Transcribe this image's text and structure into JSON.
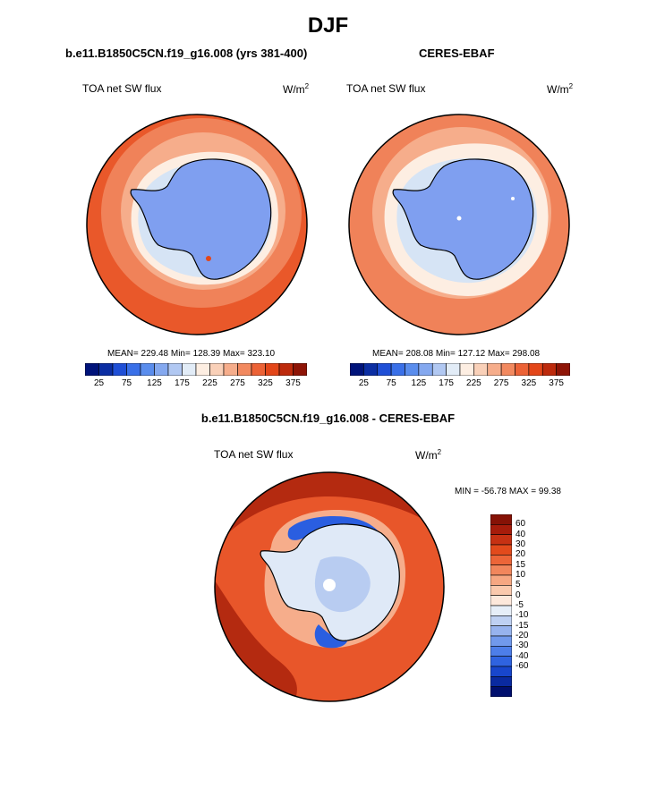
{
  "figure": {
    "title": "DJF"
  },
  "panel_left": {
    "title": "b.e11.B1850C5CN.f19_g16.008 (yrs 381-400)",
    "variable": "TOA net SW flux",
    "units_base": "W/m",
    "units_exp": "2",
    "stats": "MEAN= 229.48  Min= 128.39  Max= 323.10"
  },
  "panel_right": {
    "title": "CERES-EBAF",
    "variable": "TOA net SW flux",
    "units_base": "W/m",
    "units_exp": "2",
    "stats": "MEAN= 208.08  Min= 127.12  Max= 298.08"
  },
  "panel_diff": {
    "title": "b.e11.B1850C5CN.f19_g16.008 - CERES-EBAF",
    "variable": "TOA net SW flux",
    "units_base": "W/m",
    "units_exp": "2",
    "minmax": "MIN = -56.78 MAX =  99.38"
  },
  "colorbar_abs": {
    "colors": [
      "#00137a",
      "#0b2ea3",
      "#1f4fd6",
      "#3a70e8",
      "#5a8ded",
      "#84a8ef",
      "#b1c8f2",
      "#e2ecf7",
      "#fdeee2",
      "#f9d0b8",
      "#f6ad8b",
      "#f2895f",
      "#ec6236",
      "#e34619",
      "#bd2a0c",
      "#8e1406"
    ],
    "tick_labels": [
      "25",
      "75",
      "125",
      "175",
      "225",
      "275",
      "325",
      "375"
    ]
  },
  "colorbar_diff": {
    "colors": [
      "#000f6e",
      "#0a2aa0",
      "#1846cc",
      "#2f63e0",
      "#4d7ee9",
      "#7199ec",
      "#97b3ee",
      "#bed0f2",
      "#e6eef8",
      "#fde8db",
      "#fac9ad",
      "#f6a782",
      "#f1865c",
      "#ec6538",
      "#e24a1c",
      "#c63113",
      "#a61c0b",
      "#861206"
    ],
    "tick_labels": [
      "60",
      "40",
      "30",
      "20",
      "15",
      "10",
      "5",
      "0",
      "-5",
      "-10",
      "-15",
      "-20",
      "-30",
      "-40",
      "-60"
    ]
  },
  "map_colors": {
    "ocean_deep": "#e9582a",
    "ocean_mid": "#f08259",
    "ocean_light": "#f6ad8b",
    "ice_edge": "#fdeee2",
    "ice_light": "#d6e4f5",
    "ice": "#7f9ff0",
    "diff_high": "#b42a10",
    "diff_mid": "#e8562a",
    "diff_blue": "#2a5ee0"
  }
}
